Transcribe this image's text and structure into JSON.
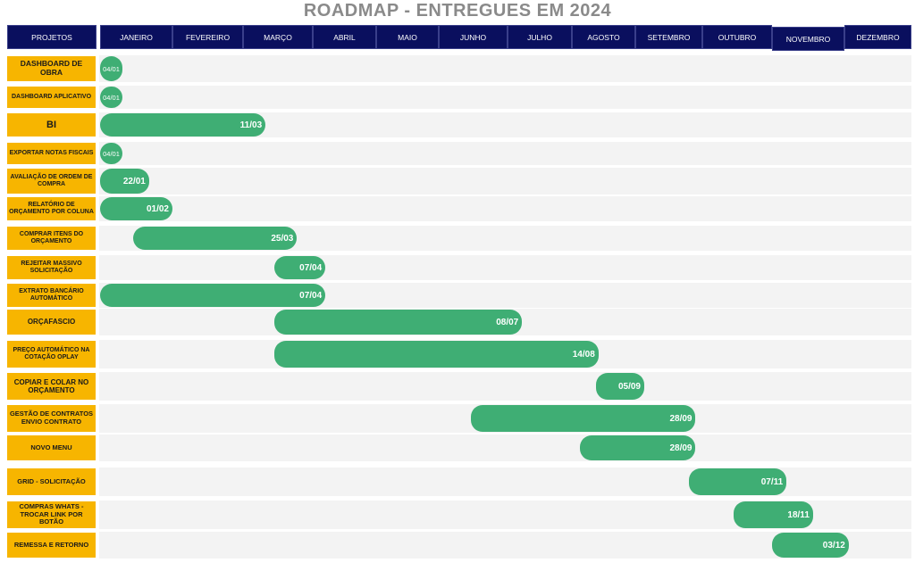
{
  "title": "ROADMAP  - ENTREGUES EM 2024",
  "header": {
    "projects_label": "PROJETOS",
    "months": [
      "JANEIRO",
      "FEVEREIRO",
      "MARÇO",
      "ABRIL",
      "MAIO",
      "JUNHO",
      "JULHO",
      "AGOSTO",
      "SETEMBRO",
      "OUTUBRO",
      "NOVEMBRO",
      "DEZEMBRO"
    ]
  },
  "colors": {
    "header_bg": "#0a0f5e",
    "label_bg": "#f7b500",
    "bar": "#3fae74",
    "title": "#8a8a8a"
  },
  "chart_data": {
    "type": "gantt",
    "title": "ROADMAP  - ENTREGUES EM 2024",
    "categories": [
      "DASHBOARD DE OBRA",
      "DASHBOARD APLICATIVO",
      "BI",
      "EXPORTAR NOTAS FISCAIS",
      "AVALIAÇÃO DE ORDEM DE COMPRA",
      "RELATÓRIO DE ORÇAMENTO POR COLUNA",
      "COMPRAR ITENS DO ORÇAMENTO",
      "REJEITAR MASSIVO SOLICITAÇÃO",
      "EXTRATO BANCÁRIO AUTOMÁTICO",
      "ORÇAFASCIO",
      "PREÇO AUTOMÁTICO NA COTAÇÃO OPLAY",
      "COPIAR E COLAR NO ORÇAMENTO",
      "GESTÃO DE CONTRATOS ENVIO CONTRATO",
      "NOVO MENU",
      "GRID - SOLICITAÇÃO",
      "COMPRAS WHATS - TROCAR LINK POR BOTÃO",
      "REMESSA E RETORNO"
    ],
    "x_axis": "months of 2024",
    "series": [
      {
        "values": [
          {
            "start": "2024-01-01",
            "end": "2024-01-04",
            "label": "04/01"
          },
          {
            "start": "2024-01-01",
            "end": "2024-01-04",
            "label": "04/01"
          },
          {
            "start": "2024-01-01",
            "end": "2024-03-11",
            "label": "11/03"
          },
          {
            "start": "2024-01-01",
            "end": "2024-01-04",
            "label": "04/01"
          },
          {
            "start": "2024-01-01",
            "end": "2024-01-22",
            "label": "22/01"
          },
          {
            "start": "2024-01-01",
            "end": "2024-02-01",
            "label": "01/02"
          },
          {
            "start": "2024-01-15",
            "end": "2024-03-25",
            "label": "25/03"
          },
          {
            "start": "2024-03-15",
            "end": "2024-04-07",
            "label": "07/04"
          },
          {
            "start": "2024-01-01",
            "end": "2024-04-07",
            "label": "07/04"
          },
          {
            "start": "2024-03-15",
            "end": "2024-07-08",
            "label": "08/07"
          },
          {
            "start": "2024-03-15",
            "end": "2024-08-14",
            "label": "14/08"
          },
          {
            "start": "2024-08-13",
            "end": "2024-09-05",
            "label": "05/09"
          },
          {
            "start": "2024-06-15",
            "end": "2024-09-28",
            "label": "28/09"
          },
          {
            "start": "2024-08-05",
            "end": "2024-09-28",
            "label": "28/09"
          },
          {
            "start": "2024-09-25",
            "end": "2024-11-07",
            "label": "07/11"
          },
          {
            "start": "2024-10-15",
            "end": "2024-11-18",
            "label": "18/11"
          },
          {
            "start": "2024-11-01",
            "end": "2024-12-03",
            "label": "03/12"
          }
        ]
      }
    ]
  }
}
